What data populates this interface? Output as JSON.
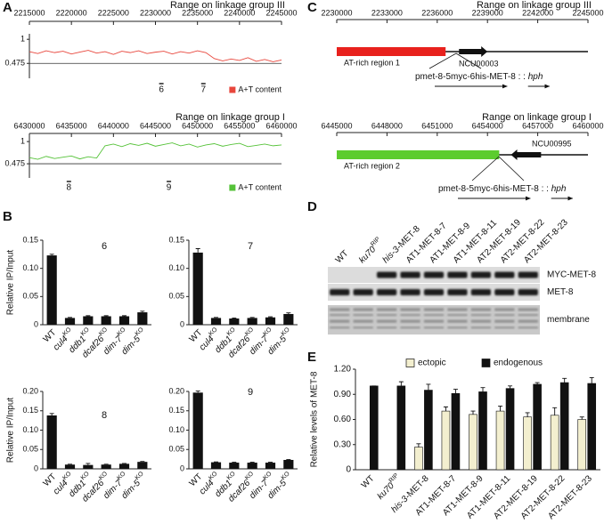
{
  "panels": [
    "A",
    "B",
    "C",
    "D",
    "E"
  ],
  "chart_data": [
    {
      "type": "line",
      "title": "Range on linkage group III",
      "x": [
        2215000,
        2216000,
        2217000,
        2218000,
        2219000,
        2220000,
        2221000,
        2222000,
        2223000,
        2224000,
        2225000,
        2226000,
        2227000,
        2228000,
        2229000,
        2230000,
        2231000,
        2232000,
        2233000,
        2234000,
        2235000,
        2236000,
        2237000,
        2238000,
        2239000,
        2240000,
        2241000,
        2242000,
        2243000,
        2244000,
        2245000
      ],
      "series": [
        {
          "name": "A+T content",
          "color": "#e8463c",
          "values": [
            0.73,
            0.69,
            0.75,
            0.71,
            0.74,
            0.68,
            0.72,
            0.76,
            0.7,
            0.73,
            0.67,
            0.74,
            0.71,
            0.75,
            0.69,
            0.72,
            0.74,
            0.68,
            0.73,
            0.7,
            0.75,
            0.71,
            0.58,
            0.53,
            0.57,
            0.54,
            0.6,
            0.52,
            0.56,
            0.51,
            0.55
          ]
        }
      ],
      "xlim": [
        2215000,
        2245000
      ],
      "xticks": [
        2215000,
        2220000,
        2225000,
        2230000,
        2235000,
        2240000,
        2245000
      ],
      "ylim": [
        0.15,
        1.12
      ],
      "yticks": [
        0.475,
        1
      ],
      "hlines": [
        0.475
      ],
      "annotations": [
        {
          "text": "6",
          "x": 2230700
        },
        {
          "text": "7",
          "x": 2235700
        }
      ],
      "legend": "bottom-right"
    },
    {
      "type": "line",
      "title": "Range on linkage group I",
      "x": [
        6430000,
        6431000,
        6432000,
        6433000,
        6434000,
        6435000,
        6436000,
        6437000,
        6438000,
        6439000,
        6440000,
        6441000,
        6442000,
        6443000,
        6444000,
        6445000,
        6446000,
        6447000,
        6448000,
        6449000,
        6450000,
        6451000,
        6452000,
        6453000,
        6454000,
        6455000,
        6456000,
        6457000,
        6458000,
        6459000,
        6460000
      ],
      "series": [
        {
          "name": "A+T content",
          "color": "#55c238",
          "values": [
            0.62,
            0.58,
            0.65,
            0.6,
            0.63,
            0.66,
            0.59,
            0.64,
            0.61,
            0.9,
            0.94,
            0.88,
            0.95,
            0.91,
            0.96,
            0.89,
            0.93,
            0.97,
            0.9,
            0.94,
            0.87,
            0.92,
            0.95,
            0.89,
            0.93,
            0.96,
            0.88,
            0.91,
            0.94,
            0.9,
            0.92
          ]
        }
      ],
      "xlim": [
        6430000,
        6460000
      ],
      "xticks": [
        6430000,
        6435000,
        6440000,
        6445000,
        6450000,
        6455000,
        6460000
      ],
      "ylim": [
        0.14,
        1.15
      ],
      "yticks": [
        0.475,
        1
      ],
      "hlines": [
        0.475
      ],
      "annotations": [
        {
          "text": "8",
          "x": 6434700
        },
        {
          "text": "9",
          "x": 6446600
        }
      ],
      "legend": "bottom-right"
    },
    {
      "type": "bar",
      "title": "6",
      "ylabel": "Relative IP/Input",
      "color": "#111111",
      "categories": [
        {
          "text": "WT"
        },
        {
          "italic": "cul4",
          "sup": "KO"
        },
        {
          "italic": "ddb1",
          "sup": "KO"
        },
        {
          "italic": "dcaf26",
          "sup": "KO"
        },
        {
          "italic": "dim-7",
          "sup": "KO"
        },
        {
          "italic": "dim-5",
          "sup": "KO"
        }
      ],
      "values": [
        0.123,
        0.012,
        0.015,
        0.015,
        0.015,
        0.022
      ],
      "errors": [
        0.002,
        0.001,
        0.001,
        0.001,
        0.001,
        0.002
      ],
      "ylim": [
        0,
        0.15
      ],
      "yticks": [
        0,
        0.05,
        {
          "value": 0.1,
          "label": "0.10"
        },
        0.15
      ]
    },
    {
      "type": "bar",
      "title": "7",
      "color": "#111111",
      "categories": [
        {
          "text": "WT"
        },
        {
          "italic": "cul4",
          "sup": "KO"
        },
        {
          "italic": "ddb1",
          "sup": "KO"
        },
        {
          "italic": "dcaf26",
          "sup": "KO"
        },
        {
          "italic": "dim-7",
          "sup": "KO"
        },
        {
          "italic": "dim-5",
          "sup": "KO"
        }
      ],
      "values": [
        0.128,
        0.012,
        0.011,
        0.012,
        0.013,
        0.019
      ],
      "errors": [
        0.007,
        0.001,
        0.001,
        0.001,
        0.001,
        0.002
      ],
      "ylim": [
        0,
        0.15
      ],
      "yticks": [
        0,
        0.05,
        {
          "value": 0.1,
          "label": "0.10"
        },
        0.15
      ]
    },
    {
      "type": "bar",
      "title": "8",
      "ylabel": "Relative IP/Input",
      "color": "#111111",
      "categories": [
        {
          "text": "WT"
        },
        {
          "italic": "cul4",
          "sup": "KO"
        },
        {
          "italic": "ddb1",
          "sup": "KO"
        },
        {
          "italic": "dcaf26",
          "sup": "KO"
        },
        {
          "italic": "dim-7",
          "sup": "KO"
        },
        {
          "italic": "dim-5",
          "sup": "KO"
        }
      ],
      "values": [
        0.138,
        0.011,
        0.01,
        0.011,
        0.013,
        0.018
      ],
      "errors": [
        0.005,
        0.001,
        0.004,
        0.001,
        0.001,
        0.001
      ],
      "ylim": [
        0,
        0.2
      ],
      "yticks": [
        0,
        0.05,
        {
          "value": 0.1,
          "label": "0.10"
        },
        0.15,
        {
          "value": 0.2,
          "label": "0.20"
        }
      ]
    },
    {
      "type": "bar",
      "title": "9",
      "color": "#111111",
      "categories": [
        {
          "text": "WT"
        },
        {
          "italic": "cul4",
          "sup": "KO"
        },
        {
          "italic": "ddb1",
          "sup": "KO"
        },
        {
          "italic": "dcaf26",
          "sup": "KO"
        },
        {
          "italic": "dim-7",
          "sup": "KO"
        },
        {
          "italic": "dim-5",
          "sup": "KO"
        }
      ],
      "values": [
        0.197,
        0.017,
        0.016,
        0.016,
        0.016,
        0.023
      ],
      "errors": [
        0.004,
        0.001,
        0.001,
        0.001,
        0.001,
        0.001
      ],
      "ylim": [
        0,
        0.2
      ],
      "yticks": [
        0,
        0.05,
        {
          "value": 0.1,
          "label": "0.10"
        },
        0.15,
        {
          "value": 0.2,
          "label": "0.20"
        }
      ]
    },
    {
      "type": "gene_map",
      "title": "Range on linkage group III",
      "xlim": [
        2230000,
        2245000
      ],
      "xticks": [
        2230000,
        2233000,
        2236000,
        2239000,
        2242000,
        2245000
      ],
      "region": {
        "label": "AT-rich region 1",
        "start": 2230000,
        "end": 2236500,
        "color": "#e8211d"
      },
      "gene": {
        "label": "NCU00003",
        "start": 2237300,
        "end": 2239000,
        "direction": "right"
      },
      "construct": {
        "text": "pmet-8-5myc-6his-MET-8 : : ",
        "italic": "hph"
      }
    },
    {
      "type": "gene_map",
      "title": "Range on linkage group I",
      "xlim": [
        6445000,
        6460000
      ],
      "xticks": [
        6445000,
        6448000,
        6451000,
        6454000,
        6457000,
        6460000
      ],
      "region": {
        "label": "AT-rich region 2",
        "start": 6445000,
        "end": 6454700,
        "color": "#5ccc2e"
      },
      "gene": {
        "label": "NCU00995",
        "start": 6455400,
        "end": 6457200,
        "direction": "left"
      },
      "construct": {
        "text": "pmet-8-5myc-6his-MET-8 : : ",
        "italic": "hph"
      }
    },
    {
      "type": "grouped_bar",
      "ylabel": "Relative levels of MET-8",
      "categories": [
        {
          "text": "WT"
        },
        {
          "italic": "ku70",
          "sup": "RIP"
        },
        {
          "italic": "his-3",
          "text": "-MET-8"
        },
        {
          "text": "AT1-MET-8-7"
        },
        {
          "text": "AT1-MET-8-9"
        },
        {
          "text": "AT1-MET-8-11"
        },
        {
          "text": "AT2-MET-8-19"
        },
        {
          "text": "AT2-MET-8-22"
        },
        {
          "text": "AT2-MET-8-23"
        }
      ],
      "series": [
        {
          "name": "ectopic",
          "color": "#f3efcf",
          "values": [
            null,
            null,
            0.27,
            0.7,
            0.66,
            0.7,
            0.63,
            0.65,
            0.6
          ],
          "errors": [
            null,
            null,
            0.04,
            0.05,
            0.04,
            0.06,
            0.05,
            0.09,
            0.03
          ]
        },
        {
          "name": "endogenous",
          "color": "#111111",
          "values": [
            1.0,
            1.0,
            0.95,
            0.91,
            0.93,
            0.97,
            1.02,
            1.04,
            1.03
          ],
          "errors": [
            0,
            0.05,
            0.07,
            0.05,
            0.05,
            0.03,
            0.02,
            0.05,
            0.07
          ]
        }
      ],
      "ylim": [
        0,
        1.2
      ],
      "yticks": [
        0,
        {
          "value": 0.3,
          "label": "0.30"
        },
        {
          "value": 0.6,
          "label": "0.60"
        },
        {
          "value": 0.9,
          "label": "0.90"
        },
        {
          "value": 1.2,
          "label": "1.20"
        }
      ],
      "legend": "top"
    }
  ],
  "blot": {
    "lanes": [
      {
        "text": "WT"
      },
      {
        "italic": "ku70",
        "sup": "RIP"
      },
      {
        "italic": "his-3",
        "text": "-MET-8"
      },
      {
        "text": "AT1-MET-8-7"
      },
      {
        "text": "AT1-MET-8-9"
      },
      {
        "text": "AT1-MET-8-11"
      },
      {
        "text": "AT2-MET-8-19"
      },
      {
        "text": "AT2-MET-8-22"
      },
      {
        "text": "AT2-MET-8-23"
      }
    ],
    "rows": [
      {
        "label": "MYC-MET-8",
        "bands": [
          false,
          false,
          true,
          true,
          true,
          true,
          true,
          true,
          true
        ]
      },
      {
        "label": "MET-8",
        "bands": [
          true,
          true,
          true,
          true,
          true,
          true,
          true,
          true,
          true
        ]
      },
      {
        "label": "membrane"
      }
    ]
  }
}
